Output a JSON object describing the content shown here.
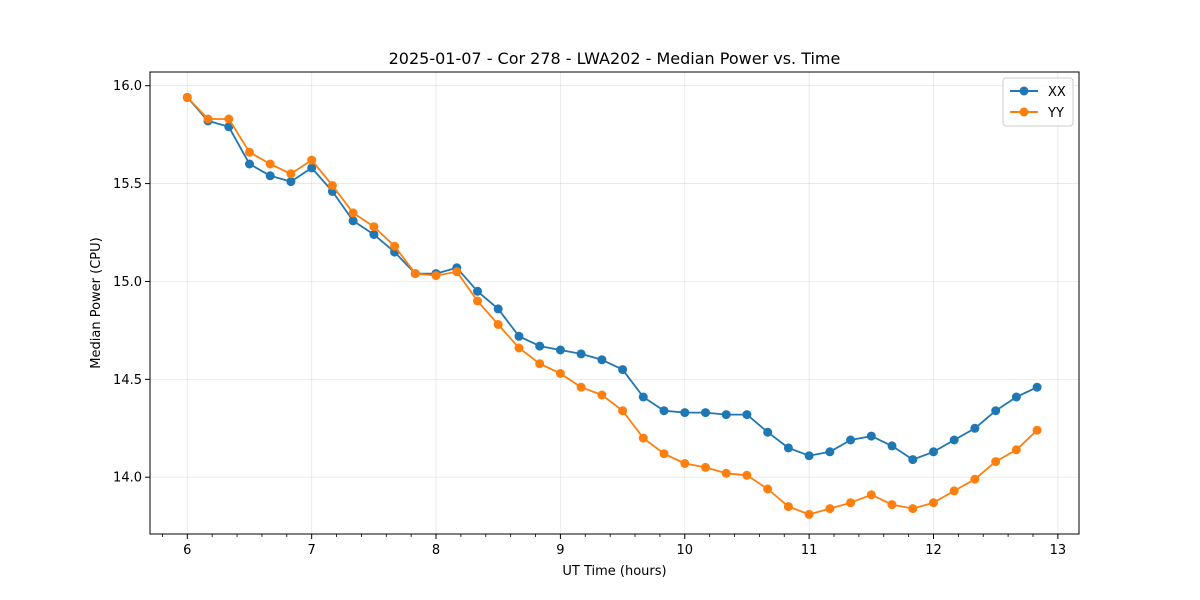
{
  "chart_data": {
    "type": "line",
    "title": "2025-01-07 - Cor 278 - LWA202 - Median Power vs. Time",
    "xlabel": "UT Time (hours)",
    "ylabel": "Median Power (CPU)",
    "xlim": [
      5.7,
      13.17
    ],
    "ylim": [
      13.71,
      16.07
    ],
    "xticks": [
      6,
      7,
      8,
      9,
      10,
      11,
      12,
      13
    ],
    "xtick_labels": [
      "6",
      "7",
      "8",
      "9",
      "10",
      "11",
      "12",
      "13"
    ],
    "yticks": [
      14.0,
      14.5,
      15.0,
      15.5,
      16.0
    ],
    "ytick_labels": [
      "14.0",
      "14.5",
      "15.0",
      "15.5",
      "16.0"
    ],
    "grid": true,
    "legend_position": "top-right",
    "x": [
      6.0,
      6.1667,
      6.3333,
      6.5,
      6.6667,
      6.8333,
      7.0,
      7.1667,
      7.3333,
      7.5,
      7.6667,
      7.8333,
      8.0,
      8.1667,
      8.3333,
      8.5,
      8.6667,
      8.8333,
      9.0,
      9.1667,
      9.3333,
      9.5,
      9.6667,
      9.8333,
      10.0,
      10.1667,
      10.3333,
      10.5,
      10.6667,
      10.8333,
      11.0,
      11.1667,
      11.3333,
      11.5,
      11.6667,
      11.8333,
      12.0,
      12.1667,
      12.3333,
      12.5,
      12.6667,
      12.8333
    ],
    "series": [
      {
        "name": "XX",
        "color": "#1f77b4",
        "values": [
          15.94,
          15.82,
          15.79,
          15.6,
          15.54,
          15.51,
          15.58,
          15.46,
          15.31,
          15.24,
          15.15,
          15.04,
          15.04,
          15.07,
          14.95,
          14.86,
          14.72,
          14.67,
          14.65,
          14.63,
          14.6,
          14.55,
          14.41,
          14.34,
          14.33,
          14.33,
          14.32,
          14.32,
          14.23,
          14.15,
          14.11,
          14.13,
          14.19,
          14.21,
          14.16,
          14.09,
          14.13,
          14.19,
          14.25,
          14.34,
          14.41,
          14.46
        ]
      },
      {
        "name": "YY",
        "color": "#ff7f0e",
        "values": [
          15.94,
          15.83,
          15.83,
          15.66,
          15.6,
          15.55,
          15.62,
          15.49,
          15.35,
          15.28,
          15.18,
          15.04,
          15.03,
          15.05,
          14.9,
          14.78,
          14.66,
          14.58,
          14.53,
          14.46,
          14.42,
          14.34,
          14.2,
          14.12,
          14.07,
          14.05,
          14.02,
          14.01,
          13.94,
          13.85,
          13.81,
          13.84,
          13.87,
          13.91,
          13.86,
          13.84,
          13.87,
          13.93,
          13.99,
          14.08,
          14.14,
          14.24
        ]
      }
    ]
  }
}
